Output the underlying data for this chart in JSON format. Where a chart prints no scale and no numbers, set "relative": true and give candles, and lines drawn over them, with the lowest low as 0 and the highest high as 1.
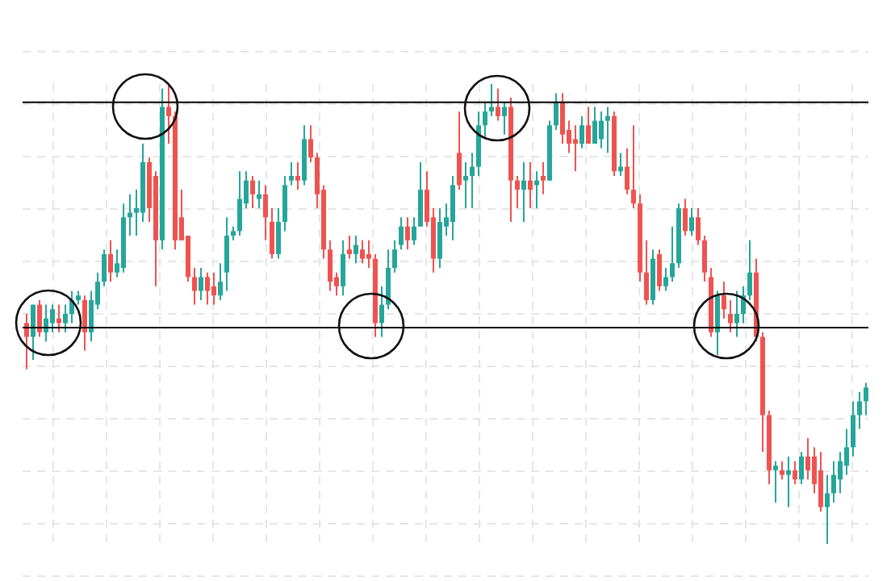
{
  "chart_data": {
    "type": "candlestick",
    "relative": true,
    "grid": true,
    "tick_labels": false,
    "categories": [
      null,
      null,
      null,
      null,
      null,
      null,
      null,
      null,
      null,
      null,
      null,
      null,
      null,
      null,
      null,
      null,
      null,
      null,
      null,
      null,
      null,
      null,
      null,
      null,
      null,
      null,
      null,
      null,
      null,
      null,
      null,
      null,
      null,
      null,
      null,
      null,
      null,
      null,
      null,
      null,
      null,
      null,
      null,
      null,
      null,
      null,
      null,
      null,
      null,
      null,
      null,
      null,
      null,
      null,
      null,
      null,
      null,
      null,
      null,
      null,
      null,
      null,
      null,
      null,
      null,
      null,
      null,
      null,
      null,
      null,
      null,
      null,
      null,
      null,
      null,
      null,
      null,
      null,
      null,
      null,
      null,
      null,
      null,
      null,
      null,
      null,
      null,
      null,
      null,
      null,
      null,
      null,
      null,
      null,
      null,
      null,
      null,
      null,
      null,
      null,
      null,
      null,
      null,
      null,
      null,
      null,
      null,
      null,
      null,
      null,
      null,
      null,
      null,
      null,
      null,
      null,
      null,
      null,
      null,
      null,
      null,
      null,
      null,
      null,
      null,
      null,
      null,
      null,
      null,
      null,
      null
    ],
    "ohlc": [
      [
        0.48,
        0.5,
        0.38,
        0.45
      ],
      [
        0.45,
        0.52,
        0.4,
        0.52
      ],
      [
        0.52,
        0.53,
        0.45,
        0.46
      ],
      [
        0.46,
        0.52,
        0.44,
        0.49
      ],
      [
        0.48,
        0.52,
        0.46,
        0.51
      ],
      [
        0.49,
        0.52,
        0.46,
        0.48
      ],
      [
        0.48,
        0.52,
        0.46,
        0.5
      ],
      [
        0.5,
        0.55,
        0.48,
        0.53
      ],
      [
        0.53,
        0.55,
        0.52,
        0.54
      ],
      [
        0.53,
        0.54,
        0.42,
        0.46
      ],
      [
        0.46,
        0.55,
        0.44,
        0.53
      ],
      [
        0.52,
        0.59,
        0.51,
        0.57
      ],
      [
        0.57,
        0.64,
        0.56,
        0.63
      ],
      [
        0.63,
        0.66,
        0.57,
        0.59
      ],
      [
        0.59,
        0.64,
        0.58,
        0.61
      ],
      [
        0.6,
        0.74,
        0.59,
        0.71
      ],
      [
        0.71,
        0.76,
        0.67,
        0.72
      ],
      [
        0.72,
        0.77,
        0.67,
        0.73
      ],
      [
        0.72,
        0.87,
        0.7,
        0.83
      ],
      [
        0.83,
        0.84,
        0.7,
        0.73
      ],
      [
        0.8,
        0.81,
        0.56,
        0.66
      ],
      [
        0.66,
        0.99,
        0.64,
        0.95
      ],
      [
        0.95,
        1.0,
        0.87,
        0.93
      ],
      [
        0.93,
        0.94,
        0.64,
        0.66
      ],
      [
        0.71,
        0.77,
        0.66,
        0.66
      ],
      [
        0.67,
        0.67,
        0.57,
        0.58
      ],
      [
        0.58,
        0.6,
        0.52,
        0.55
      ],
      [
        0.55,
        0.6,
        0.53,
        0.58
      ],
      [
        0.58,
        0.59,
        0.52,
        0.55
      ],
      [
        0.56,
        0.59,
        0.52,
        0.54
      ],
      [
        0.54,
        0.61,
        0.53,
        0.57
      ],
      [
        0.59,
        0.71,
        0.55,
        0.67
      ],
      [
        0.67,
        0.69,
        0.66,
        0.68
      ],
      [
        0.68,
        0.81,
        0.67,
        0.75
      ],
      [
        0.74,
        0.81,
        0.73,
        0.79
      ],
      [
        0.79,
        0.8,
        0.73,
        0.76
      ],
      [
        0.75,
        0.79,
        0.73,
        0.76
      ],
      [
        0.76,
        0.78,
        0.66,
        0.71
      ],
      [
        0.7,
        0.73,
        0.62,
        0.63
      ],
      [
        0.63,
        0.73,
        0.62,
        0.7
      ],
      [
        0.7,
        0.8,
        0.68,
        0.78
      ],
      [
        0.79,
        0.83,
        0.78,
        0.8
      ],
      [
        0.8,
        0.83,
        0.77,
        0.79
      ],
      [
        0.79,
        0.91,
        0.78,
        0.88
      ],
      [
        0.88,
        0.91,
        0.83,
        0.84
      ],
      [
        0.84,
        0.85,
        0.73,
        0.76
      ],
      [
        0.77,
        0.78,
        0.62,
        0.64
      ],
      [
        0.64,
        0.66,
        0.55,
        0.57
      ],
      [
        0.58,
        0.59,
        0.54,
        0.56
      ],
      [
        0.56,
        0.66,
        0.54,
        0.63
      ],
      [
        0.64,
        0.67,
        0.62,
        0.63
      ],
      [
        0.63,
        0.67,
        0.61,
        0.65
      ],
      [
        0.64,
        0.66,
        0.61,
        0.62
      ],
      [
        0.63,
        0.66,
        0.6,
        0.62
      ],
      [
        0.62,
        0.63,
        0.45,
        0.48
      ],
      [
        0.48,
        0.56,
        0.45,
        0.52
      ],
      [
        0.52,
        0.64,
        0.51,
        0.6
      ],
      [
        0.6,
        0.66,
        0.59,
        0.64
      ],
      [
        0.65,
        0.71,
        0.64,
        0.69
      ],
      [
        0.69,
        0.71,
        0.64,
        0.66
      ],
      [
        0.66,
        0.71,
        0.65,
        0.69
      ],
      [
        0.69,
        0.83,
        0.69,
        0.77
      ],
      [
        0.77,
        0.81,
        0.69,
        0.7
      ],
      [
        0.71,
        0.73,
        0.59,
        0.62
      ],
      [
        0.62,
        0.73,
        0.6,
        0.7
      ],
      [
        0.69,
        0.74,
        0.67,
        0.71
      ],
      [
        0.7,
        0.8,
        0.66,
        0.78
      ],
      [
        0.85,
        0.94,
        0.77,
        0.78
      ],
      [
        0.79,
        0.83,
        0.73,
        0.8
      ],
      [
        0.8,
        0.85,
        0.73,
        0.82
      ],
      [
        0.82,
        0.94,
        0.8,
        0.91
      ],
      [
        0.91,
        0.96,
        0.88,
        0.94
      ],
      [
        0.94,
        1.0,
        0.93,
        0.95
      ],
      [
        0.95,
        0.99,
        0.92,
        0.93
      ],
      [
        0.93,
        0.96,
        0.89,
        0.95
      ],
      [
        0.95,
        0.97,
        0.7,
        0.79
      ],
      [
        0.79,
        0.8,
        0.73,
        0.77
      ],
      [
        0.77,
        0.83,
        0.7,
        0.79
      ],
      [
        0.79,
        0.83,
        0.73,
        0.77
      ],
      [
        0.78,
        0.81,
        0.73,
        0.79
      ],
      [
        0.8,
        0.83,
        0.76,
        0.79
      ],
      [
        0.79,
        0.92,
        0.79,
        0.91
      ],
      [
        0.91,
        0.98,
        0.9,
        0.96
      ],
      [
        0.96,
        0.98,
        0.87,
        0.89
      ],
      [
        0.9,
        0.92,
        0.85,
        0.87
      ],
      [
        0.88,
        0.91,
        0.81,
        0.87
      ],
      [
        0.87,
        0.93,
        0.86,
        0.91
      ],
      [
        0.91,
        0.95,
        0.87,
        0.87
      ],
      [
        0.87,
        0.95,
        0.87,
        0.92
      ],
      [
        0.88,
        0.94,
        0.86,
        0.92
      ],
      [
        0.92,
        0.95,
        0.85,
        0.93
      ],
      [
        0.93,
        0.94,
        0.8,
        0.81
      ],
      [
        0.81,
        0.85,
        0.8,
        0.82
      ],
      [
        0.82,
        0.86,
        0.76,
        0.77
      ],
      [
        0.77,
        0.91,
        0.73,
        0.74
      ],
      [
        0.74,
        0.76,
        0.57,
        0.59
      ],
      [
        0.59,
        0.66,
        0.52,
        0.53
      ],
      [
        0.53,
        0.64,
        0.52,
        0.62
      ],
      [
        0.63,
        0.64,
        0.55,
        0.56
      ],
      [
        0.56,
        0.6,
        0.55,
        0.58
      ],
      [
        0.58,
        0.69,
        0.57,
        0.61
      ],
      [
        0.61,
        0.74,
        0.6,
        0.73
      ],
      [
        0.73,
        0.75,
        0.67,
        0.68
      ],
      [
        0.68,
        0.73,
        0.67,
        0.71
      ],
      [
        0.71,
        0.73,
        0.65,
        0.66
      ],
      [
        0.66,
        0.67,
        0.57,
        0.59
      ],
      [
        0.58,
        0.6,
        0.45,
        0.46
      ],
      [
        0.46,
        0.55,
        0.41,
        0.54
      ],
      [
        0.54,
        0.57,
        0.49,
        0.51
      ],
      [
        0.5,
        0.53,
        0.46,
        0.48
      ],
      [
        0.48,
        0.55,
        0.45,
        0.5
      ],
      [
        0.5,
        0.56,
        0.48,
        0.54
      ],
      [
        0.54,
        0.66,
        0.53,
        0.59
      ],
      [
        0.59,
        0.62,
        0.44,
        0.45
      ],
      [
        0.45,
        0.46,
        0.2,
        0.28
      ],
      [
        0.28,
        0.29,
        0.13,
        0.16
      ],
      [
        0.16,
        0.18,
        0.09,
        0.17
      ],
      [
        0.16,
        0.18,
        0.14,
        0.15
      ],
      [
        0.15,
        0.19,
        0.08,
        0.16
      ],
      [
        0.16,
        0.18,
        0.13,
        0.14
      ],
      [
        0.14,
        0.2,
        0.13,
        0.19
      ],
      [
        0.19,
        0.23,
        0.14,
        0.16
      ],
      [
        0.19,
        0.21,
        0.11,
        0.13
      ],
      [
        0.16,
        0.2,
        0.07,
        0.08
      ],
      [
        0.08,
        0.15,
        0.0,
        0.11
      ],
      [
        0.11,
        0.18,
        0.09,
        0.15
      ],
      [
        0.14,
        0.2,
        0.11,
        0.18
      ],
      [
        0.17,
        0.25,
        0.15,
        0.21
      ],
      [
        0.21,
        0.31,
        0.19,
        0.28
      ],
      [
        0.28,
        0.33,
        0.25,
        0.31
      ],
      [
        0.31,
        0.35,
        0.28,
        0.34
      ]
    ],
    "colors": [
      "#ef5350",
      "#26a69a",
      "#ef5350",
      "#26a69a",
      "#26a69a",
      "#ef5350",
      "#26a69a",
      "#26a69a",
      "#26a69a",
      "#ef5350",
      "#26a69a",
      "#26a69a",
      "#26a69a",
      "#ef5350",
      "#26a69a",
      "#26a69a",
      "#26a69a",
      "#26a69a",
      "#26a69a",
      "#ef5350",
      "#ef5350",
      "#26a69a",
      "#ef5350",
      "#ef5350",
      "#ef5350",
      "#ef5350",
      "#ef5350",
      "#26a69a",
      "#ef5350",
      "#ef5350",
      "#26a69a",
      "#26a69a",
      "#26a69a",
      "#26a69a",
      "#26a69a",
      "#ef5350",
      "#26a69a",
      "#ef5350",
      "#ef5350",
      "#26a69a",
      "#26a69a",
      "#26a69a",
      "#ef5350",
      "#26a69a",
      "#ef5350",
      "#ef5350",
      "#ef5350",
      "#ef5350",
      "#ef5350",
      "#26a69a",
      "#ef5350",
      "#26a69a",
      "#ef5350",
      "#ef5350",
      "#ef5350",
      "#26a69a",
      "#26a69a",
      "#26a69a",
      "#26a69a",
      "#ef5350",
      "#26a69a",
      "#26a69a",
      "#ef5350",
      "#ef5350",
      "#26a69a",
      "#26a69a",
      "#26a69a",
      "#ef5350",
      "#26a69a",
      "#26a69a",
      "#26a69a",
      "#26a69a",
      "#26a69a",
      "#ef5350",
      "#26a69a",
      "#ef5350",
      "#ef5350",
      "#26a69a",
      "#ef5350",
      "#26a69a",
      "#ef5350",
      "#26a69a",
      "#26a69a",
      "#ef5350",
      "#ef5350",
      "#ef5350",
      "#26a69a",
      "#ef5350",
      "#26a69a",
      "#26a69a",
      "#26a69a",
      "#ef5350",
      "#26a69a",
      "#ef5350",
      "#ef5350",
      "#ef5350",
      "#ef5350",
      "#26a69a",
      "#ef5350",
      "#26a69a",
      "#26a69a",
      "#26a69a",
      "#ef5350",
      "#26a69a",
      "#ef5350",
      "#ef5350",
      "#ef5350",
      "#26a69a",
      "#ef5350",
      "#ef5350",
      "#26a69a",
      "#26a69a",
      "#26a69a",
      "#ef5350",
      "#ef5350",
      "#ef5350",
      "#26a69a",
      "#ef5350",
      "#26a69a",
      "#ef5350",
      "#26a69a",
      "#ef5350",
      "#ef5350",
      "#ef5350",
      "#26a69a",
      "#26a69a",
      "#26a69a",
      "#26a69a",
      "#26a69a",
      "#26a69a",
      "#26a69a"
    ],
    "ref_lines": [
      {
        "axis": "y",
        "value": 0.96,
        "color": "#000000"
      },
      {
        "axis": "y",
        "value": 0.47,
        "color": "#000000"
      }
    ]
  }
}
